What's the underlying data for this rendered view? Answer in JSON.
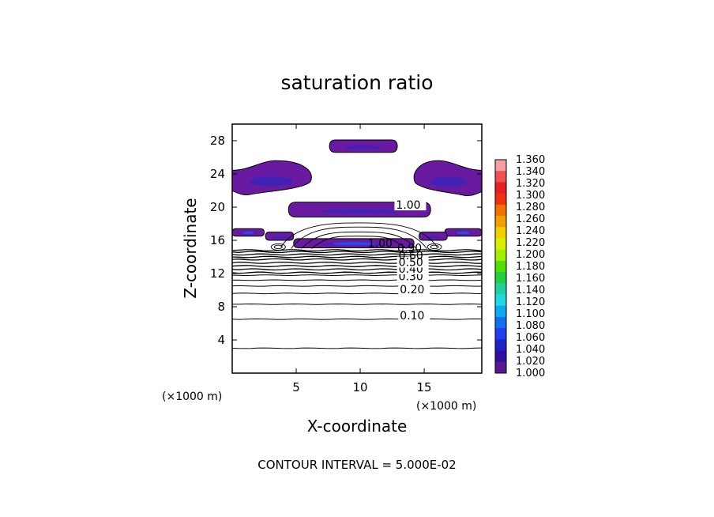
{
  "chart_data": {
    "type": "contour",
    "title": "saturation ratio",
    "xlabel": "X-coordinate",
    "ylabel": "Z-coordinate",
    "x_unit": "(×1000 m)",
    "z_unit": "(×1000 m)",
    "xlim": [
      0,
      19.5
    ],
    "ylim": [
      0,
      30
    ],
    "x_ticks": [
      "5",
      "10",
      "15"
    ],
    "y_ticks": [
      "4",
      "8",
      "12",
      "16",
      "20",
      "24",
      "28"
    ],
    "contour_interval_text": "CONTOUR INTERVAL = 5.000E-02",
    "contour_labels": [
      {
        "text": "0.10",
        "x": 13.1,
        "z": 6.5
      },
      {
        "text": "0.20",
        "x": 13.1,
        "z": 9.6
      },
      {
        "text": "0.30",
        "x": 13.0,
        "z": 11.2
      },
      {
        "text": "0.40",
        "x": 13.0,
        "z": 12.1
      },
      {
        "text": "0.50",
        "x": 13.0,
        "z": 12.9
      },
      {
        "text": "0.60",
        "x": 13.0,
        "z": 13.7
      },
      {
        "text": "0.90",
        "x": 12.9,
        "z": 14.6
      },
      {
        "text": "1.00",
        "x": 10.6,
        "z": 15.2
      },
      {
        "text": "1.00",
        "x": 12.8,
        "z": 19.8
      }
    ],
    "colorbar": {
      "labels": [
        "1.360",
        "1.340",
        "1.320",
        "1.300",
        "1.280",
        "1.260",
        "1.240",
        "1.220",
        "1.200",
        "1.180",
        "1.160",
        "1.140",
        "1.120",
        "1.100",
        "1.080",
        "1.060",
        "1.040",
        "1.020",
        "1.000"
      ],
      "colors": [
        "#f8a0a0",
        "#f05050",
        "#e82020",
        "#f03010",
        "#f07000",
        "#f0a000",
        "#f0d000",
        "#d8f000",
        "#a0f000",
        "#50e000",
        "#20d040",
        "#20d0a0",
        "#20d8e0",
        "#10a8f0",
        "#1070f0",
        "#2040f0",
        "#2020c8",
        "#3010a0",
        "#5a1890"
      ]
    },
    "saturated_regions": [
      {
        "name": "upper-cap",
        "x": [
          7.6,
          12.9
        ],
        "z": [
          26.6,
          28.1
        ]
      },
      {
        "name": "left-upper-band",
        "x": [
          0,
          6.1
        ],
        "z": [
          21.7,
          25.4
        ]
      },
      {
        "name": "right-upper-band",
        "x": [
          14.3,
          19.5
        ],
        "z": [
          21.6,
          25.4
        ]
      },
      {
        "name": "middle-band",
        "x": [
          4.4,
          15.5
        ],
        "z": [
          18.8,
          20.6
        ]
      },
      {
        "name": "left-mid-patch",
        "x": [
          0,
          2.5
        ],
        "z": [
          16.5,
          17.4
        ]
      },
      {
        "name": "right-mid-patch",
        "x": [
          16.6,
          19.5
        ],
        "z": [
          16.5,
          17.4
        ]
      },
      {
        "name": "left-lower-patch",
        "x": [
          2.6,
          4.8
        ],
        "z": [
          16.0,
          17.0
        ]
      },
      {
        "name": "right-lower-patch",
        "x": [
          14.6,
          16.8
        ],
        "z": [
          16.0,
          17.0
        ]
      },
      {
        "name": "center-lower-band",
        "x": [
          4.8,
          14.2
        ],
        "z": [
          15.1,
          16.2
        ]
      }
    ],
    "colors": {
      "saturated_fill": "#6a1aa0",
      "deep_fill": "#3a24b8",
      "blue_fill": "#2a4ae8"
    }
  }
}
